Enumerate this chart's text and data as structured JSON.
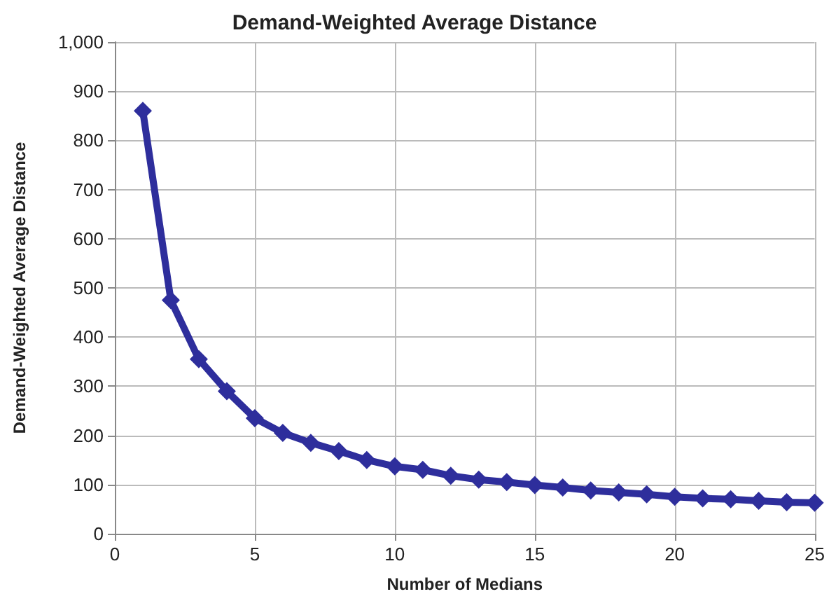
{
  "chart_data": {
    "type": "line",
    "title": "Demand-Weighted Average Distance",
    "xlabel": "Number of Medians",
    "ylabel": "Demand-Weighted Average Distance",
    "x": [
      1,
      2,
      3,
      4,
      5,
      6,
      7,
      8,
      9,
      10,
      11,
      12,
      13,
      14,
      15,
      16,
      17,
      18,
      19,
      20,
      21,
      22,
      23,
      24,
      25
    ],
    "series": [
      {
        "color": "#2e2e9c",
        "values": [
          860,
          475,
          355,
          290,
          235,
          205,
          185,
          168,
          150,
          137,
          130,
          118,
          110,
          105,
          99,
          94,
          88,
          84,
          80,
          75,
          72,
          70,
          67,
          64,
          63
        ]
      }
    ],
    "xlim": [
      0,
      25
    ],
    "xticks": [
      0,
      5,
      10,
      15,
      20,
      25
    ],
    "ylim": [
      0,
      1000
    ],
    "yticks": [
      0,
      {
        "value": 100,
        "label": "100"
      },
      {
        "value": 200,
        "label": "200"
      },
      {
        "value": 300,
        "label": "300"
      },
      {
        "value": 400,
        "label": "400"
      },
      {
        "value": 500,
        "label": "500"
      },
      {
        "value": 600,
        "label": "600"
      },
      {
        "value": 700,
        "label": "700"
      },
      {
        "value": 800,
        "label": "800"
      },
      {
        "value": 900,
        "label": "900"
      },
      {
        "value": 1000,
        "label": "1,000"
      }
    ],
    "grid": true,
    "marker": "diamond",
    "line_style": "solid"
  }
}
